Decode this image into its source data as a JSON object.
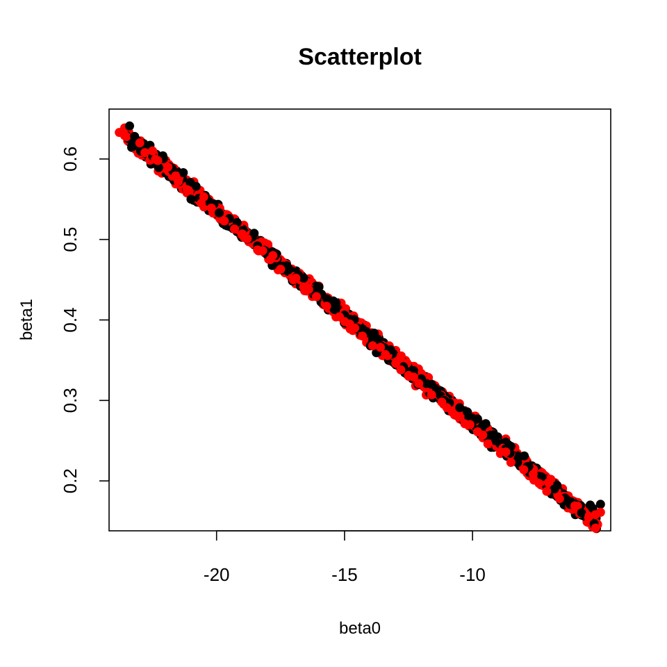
{
  "chart_data": {
    "type": "scatter",
    "title": "Scatterplot",
    "xlabel": "beta0",
    "ylabel": "beta1",
    "xlim": [
      -24.2,
      -4.6
    ],
    "ylim": [
      0.138,
      0.662
    ],
    "xticks": [
      -20,
      -15,
      -10
    ],
    "xtick_labels": [
      "-20",
      "-15",
      "-10"
    ],
    "yticks": [
      0.2,
      0.3,
      0.4,
      0.5,
      0.6
    ],
    "ytick_labels": [
      "0.2",
      "0.3",
      "0.4",
      "0.5",
      "0.6"
    ],
    "grid": false,
    "legend": "none",
    "trend": {
      "slope": -0.02625,
      "intercept": 0.011
    },
    "series": [
      {
        "color": "#000000",
        "points": [
          [
            -23.4,
            0.641
          ],
          [
            -23.2,
            0.628
          ],
          [
            -22.6,
            0.617
          ],
          [
            -22.1,
            0.604
          ],
          [
            -21.7,
            0.585
          ],
          [
            -21.3,
            0.583
          ],
          [
            -20.8,
            0.566
          ],
          [
            -20.3,
            0.547
          ],
          [
            -19.9,
            0.533
          ],
          [
            -19.5,
            0.526
          ],
          [
            -19.0,
            0.511
          ],
          [
            -18.6,
            0.503
          ],
          [
            -18.1,
            0.486
          ],
          [
            -17.7,
            0.48
          ],
          [
            -17.2,
            0.462
          ],
          [
            -16.8,
            0.456
          ],
          [
            -16.3,
            0.437
          ],
          [
            -15.9,
            0.432
          ],
          [
            -15.4,
            0.413
          ],
          [
            -15.0,
            0.406
          ],
          [
            -14.5,
            0.39
          ],
          [
            -14.1,
            0.384
          ],
          [
            -13.6,
            0.368
          ],
          [
            -13.2,
            0.363
          ],
          [
            -12.7,
            0.342
          ],
          [
            -12.3,
            0.337
          ],
          [
            -11.8,
            0.321
          ],
          [
            -11.4,
            0.313
          ],
          [
            -10.9,
            0.297
          ],
          [
            -10.5,
            0.291
          ],
          [
            -10.0,
            0.273
          ],
          [
            -9.6,
            0.268
          ],
          [
            -9.1,
            0.25
          ],
          [
            -8.7,
            0.24
          ],
          [
            -8.2,
            0.229
          ],
          [
            -7.8,
            0.218
          ],
          [
            -7.3,
            0.205
          ],
          [
            -6.8,
            0.19
          ],
          [
            -6.3,
            0.176
          ],
          [
            -5.4,
            0.17
          ],
          [
            -5.0,
            0.171
          ],
          [
            -5.3,
            0.166
          ],
          [
            -21.0,
            0.55
          ],
          [
            -18.4,
            0.492
          ],
          [
            -16.0,
            0.441
          ],
          [
            -13.9,
            0.377
          ],
          [
            -11.6,
            0.32
          ],
          [
            -9.3,
            0.257
          ],
          [
            -20.1,
            0.544
          ],
          [
            -17.5,
            0.467
          ],
          [
            -14.8,
            0.401
          ],
          [
            -12.0,
            0.327
          ],
          [
            -9.8,
            0.277
          ],
          [
            -15.6,
            0.424
          ],
          [
            -13.4,
            0.361
          ],
          [
            -8.5,
            0.243
          ],
          [
            -19.2,
            0.521
          ],
          [
            -16.6,
            0.452
          ],
          [
            -14.3,
            0.389
          ],
          [
            -11.1,
            0.3
          ]
        ]
      },
      {
        "color": "#ff0000",
        "points": [
          [
            -23.8,
            0.633
          ],
          [
            -23.0,
            0.62
          ],
          [
            -22.8,
            0.608
          ],
          [
            -22.3,
            0.598
          ],
          [
            -21.9,
            0.59
          ],
          [
            -21.5,
            0.572
          ],
          [
            -21.1,
            0.561
          ],
          [
            -20.6,
            0.545
          ],
          [
            -20.2,
            0.539
          ],
          [
            -19.7,
            0.523
          ],
          [
            -19.3,
            0.513
          ],
          [
            -18.8,
            0.501
          ],
          [
            -18.4,
            0.487
          ],
          [
            -17.9,
            0.475
          ],
          [
            -17.5,
            0.463
          ],
          [
            -17.0,
            0.45
          ],
          [
            -16.6,
            0.441
          ],
          [
            -16.1,
            0.429
          ],
          [
            -15.7,
            0.417
          ],
          [
            -15.2,
            0.404
          ],
          [
            -14.8,
            0.395
          ],
          [
            -14.3,
            0.38
          ],
          [
            -13.9,
            0.368
          ],
          [
            -13.4,
            0.357
          ],
          [
            -13.0,
            0.346
          ],
          [
            -12.5,
            0.331
          ],
          [
            -12.1,
            0.321
          ],
          [
            -11.6,
            0.307
          ],
          [
            -11.2,
            0.298
          ],
          [
            -10.7,
            0.282
          ],
          [
            -10.3,
            0.271
          ],
          [
            -9.8,
            0.261
          ],
          [
            -9.4,
            0.246
          ],
          [
            -8.9,
            0.236
          ],
          [
            -8.5,
            0.223
          ],
          [
            -8.0,
            0.214
          ],
          [
            -7.6,
            0.201
          ],
          [
            -7.1,
            0.187
          ],
          [
            -6.6,
            0.178
          ],
          [
            -6.0,
            0.169
          ],
          [
            -5.2,
            0.158
          ],
          [
            -5.0,
            0.161
          ],
          [
            -21.6,
            0.579
          ],
          [
            -19.0,
            0.507
          ],
          [
            -16.4,
            0.438
          ],
          [
            -13.6,
            0.366
          ],
          [
            -11.0,
            0.291
          ],
          [
            -8.7,
            0.236
          ],
          [
            -20.5,
            0.553
          ],
          [
            -17.8,
            0.48
          ],
          [
            -15.0,
            0.398
          ],
          [
            -12.3,
            0.329
          ],
          [
            -9.6,
            0.257
          ],
          [
            -18.2,
            0.486
          ],
          [
            -14.6,
            0.39
          ],
          [
            -10.1,
            0.27
          ],
          [
            -7.4,
            0.197
          ],
          [
            -22.5,
            0.61
          ],
          [
            -12.8,
            0.338
          ],
          [
            -16.9,
            0.452
          ]
        ]
      }
    ]
  }
}
